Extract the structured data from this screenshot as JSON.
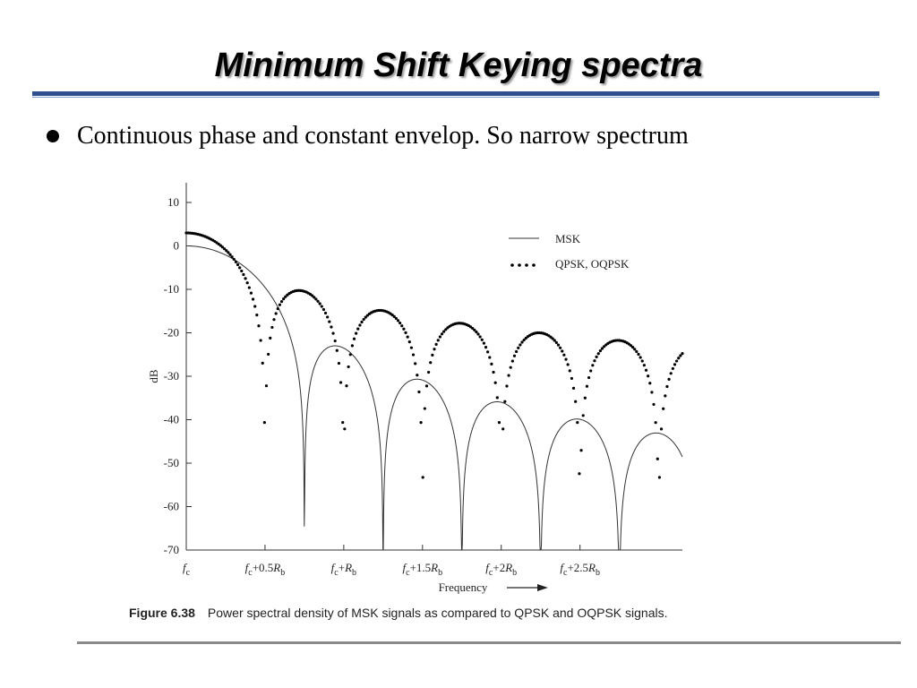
{
  "slide": {
    "title": "Minimum Shift Keying spectra",
    "bullet": "Continuous phase and constant envelop. So narrow spectrum",
    "caption_number": "Figure 6.38",
    "caption_text": "Power spectral density of MSK signals as compared to QPSK and OQPSK signals."
  },
  "colors": {
    "title_rule": "#2f4f8f",
    "footer_rule": "#8a8a8a"
  },
  "chart_data": {
    "type": "line",
    "xlabel": "Frequency",
    "ylabel": "dB",
    "ylim": [
      -70,
      10
    ],
    "xlim": [
      0,
      3.15
    ],
    "yticks": [
      10,
      0,
      -10,
      -20,
      -30,
      -40,
      -50,
      -60,
      -70
    ],
    "xticks": [
      {
        "value": 0,
        "label": "fc"
      },
      {
        "value": 0.5,
        "label": "fc+0.5Rb"
      },
      {
        "value": 1.0,
        "label": "fc+Rb"
      },
      {
        "value": 1.5,
        "label": "fc+1.5Rb"
      },
      {
        "value": 2.0,
        "label": "fc+2Rb"
      },
      {
        "value": 2.5,
        "label": "fc+2.5Rb"
      }
    ],
    "legend_position": "top-right",
    "series": [
      {
        "name": "MSK",
        "style": "solid",
        "formula": "msk",
        "nulls": [
          0.75,
          1.25,
          1.75,
          2.25,
          2.75
        ],
        "offset_db": 0
      },
      {
        "name": "QPSK, OQPSK",
        "style": "dotted",
        "formula": "qpsk",
        "nulls": [
          0.5,
          1.0,
          1.5,
          2.0,
          2.5,
          3.0
        ],
        "offset_db": 3
      }
    ]
  }
}
